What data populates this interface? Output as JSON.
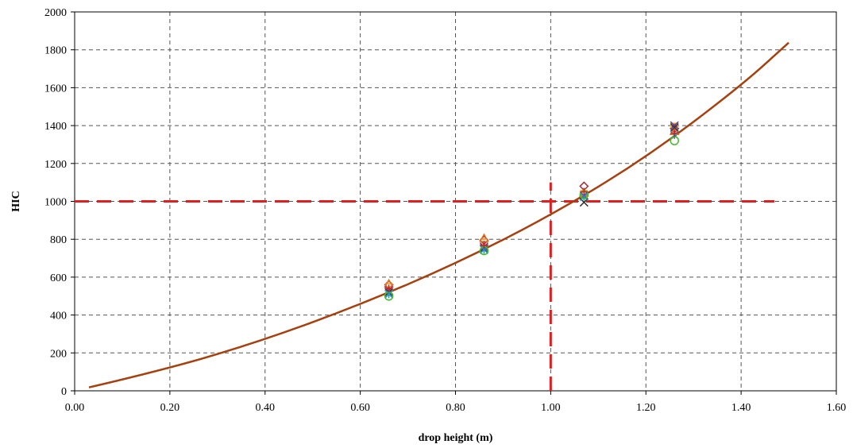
{
  "chart_data": {
    "type": "scatter",
    "title": "",
    "xlabel": "drop height (m)",
    "ylabel": "HIC",
    "xlim": [
      0,
      1.6
    ],
    "ylim": [
      0,
      2000
    ],
    "x_ticks": [
      "0.00",
      "0.20",
      "0.40",
      "0.60",
      "0.80",
      "1.00",
      "1.20",
      "1.40",
      "1.60"
    ],
    "y_ticks": [
      "0",
      "200",
      "400",
      "600",
      "800",
      "1000",
      "1200",
      "1400",
      "1600",
      "1800",
      "2000"
    ],
    "grid": true,
    "legend": "none",
    "fit_curve": {
      "color": "#a5400f",
      "x": [
        0.03,
        0.2,
        0.4,
        0.6,
        0.8,
        1.0,
        1.2,
        1.4,
        1.5
      ],
      "y": [
        18,
        118,
        270,
        455,
        670,
        925,
        1230,
        1610,
        1838
      ]
    },
    "threshold_lines": {
      "color": "#e02020",
      "hic": 1000,
      "drop_height": 1.0
    },
    "series": [
      {
        "marker": "diamond",
        "color": "#a0303a",
        "x": [
          0.66,
          0.86,
          1.07,
          1.26
        ],
        "y": [
          560,
          795,
          1080,
          1385
        ]
      },
      {
        "marker": "square",
        "color": "#f0a020",
        "x": [
          0.66,
          0.86,
          1.07,
          1.26
        ],
        "y": [
          550,
          785,
          1040,
          1395
        ]
      },
      {
        "marker": "triangle",
        "color": "#e07020",
        "x": [
          0.66,
          0.86,
          1.07,
          1.26
        ],
        "y": [
          565,
          805,
          1045,
          1370
        ]
      },
      {
        "marker": "x",
        "color": "#6a3d8f",
        "x": [
          0.66,
          0.86,
          1.07,
          1.26
        ],
        "y": [
          530,
          760,
          1030,
          1400
        ]
      },
      {
        "marker": "x",
        "color": "#333333",
        "x": [
          0.66,
          0.86,
          1.07,
          1.26
        ],
        "y": [
          520,
          750,
          995,
          1390
        ]
      },
      {
        "marker": "star",
        "color": "#1f8fcf",
        "x": [
          0.66,
          0.86,
          1.07,
          1.26
        ],
        "y": [
          510,
          745,
          1025,
          1350
        ]
      },
      {
        "marker": "circle",
        "color": "#4ab830",
        "x": [
          0.66,
          0.86,
          1.07,
          1.26
        ],
        "y": [
          500,
          740,
          1035,
          1320
        ]
      },
      {
        "marker": "plus",
        "color": "#d82020",
        "x": [
          0.66,
          0.86,
          1.07,
          1.26
        ],
        "y": [
          540,
          770,
          1050,
          1360
        ]
      }
    ]
  }
}
